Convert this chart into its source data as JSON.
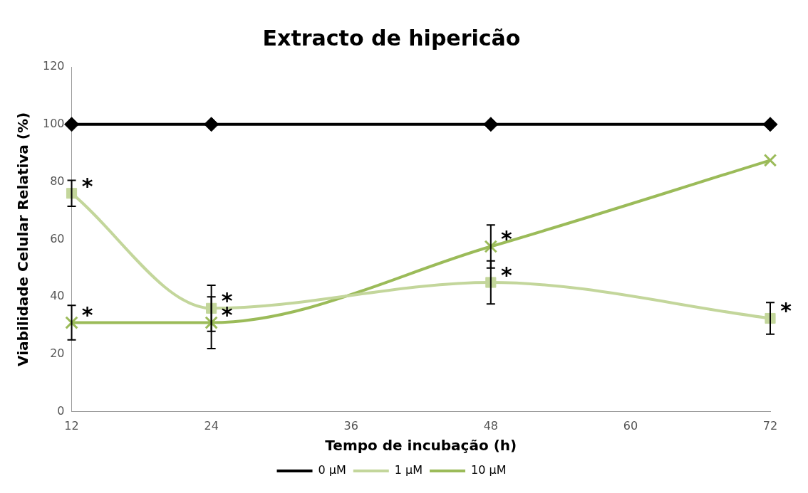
{
  "chart_data": {
    "type": "line",
    "title": "Extracto de hipericão",
    "xlabel": "Tempo de incubação (h)",
    "ylabel": "Viabilidade Celular Relativa (%)",
    "x": [
      12,
      24,
      48,
      72
    ],
    "xlim": [
      12,
      72
    ],
    "xticks": [
      12,
      24,
      36,
      48,
      60,
      72
    ],
    "ylim": [
      0,
      120
    ],
    "yticks": [
      0,
      20,
      40,
      60,
      80,
      100,
      120
    ],
    "grid": false,
    "legend": "bottom",
    "series": [
      {
        "name": "0 µM",
        "color": "#000000",
        "marker": "diamond",
        "values": [
          100,
          100,
          100,
          100
        ]
      },
      {
        "name": "1 µM",
        "color": "#c3d69b",
        "marker": "square",
        "values": [
          76,
          36,
          45,
          32.5
        ],
        "errors": [
          4.5,
          8,
          7.5,
          5.5
        ]
      },
      {
        "name": "10 µM",
        "color": "#9bbb59",
        "marker": "cross",
        "values": [
          31,
          31,
          57.5,
          87.5
        ],
        "errors": [
          6,
          9,
          7.5,
          null
        ]
      }
    ],
    "annotations": [
      {
        "text": "*",
        "x": 12,
        "y": 76
      },
      {
        "text": "*",
        "x": 24,
        "y": 36
      },
      {
        "text": "*",
        "x": 48,
        "y": 45
      },
      {
        "text": "*",
        "x": 72,
        "y": 32.5
      },
      {
        "text": "*",
        "x": 12,
        "y": 31
      },
      {
        "text": "*",
        "x": 24,
        "y": 31
      },
      {
        "text": "*",
        "x": 48,
        "y": 57.5
      }
    ]
  }
}
